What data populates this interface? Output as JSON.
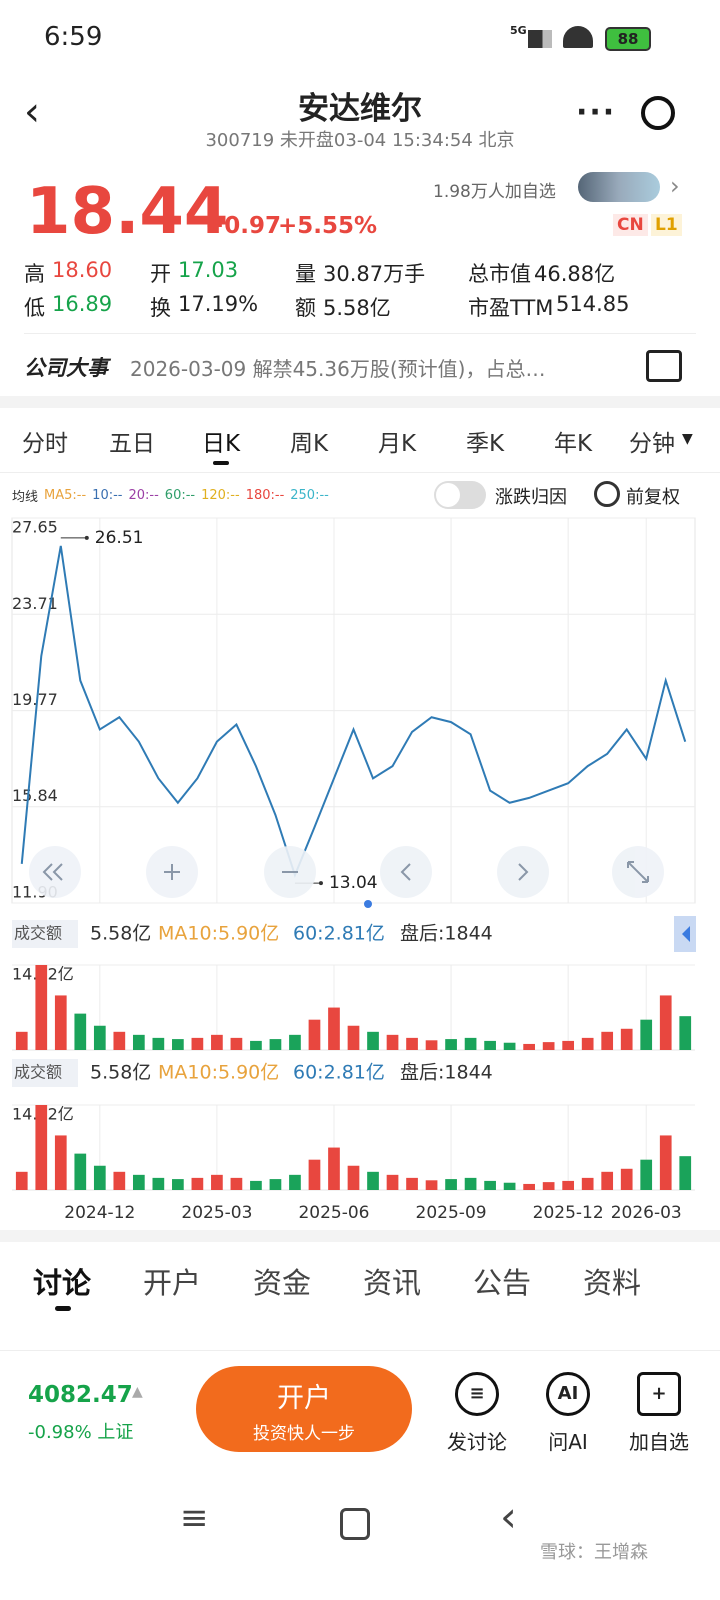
{
  "status_bar": {
    "time": "6:59",
    "network": "5G",
    "battery": "88"
  },
  "header": {
    "title": "安达维尔",
    "subtitle": "300719 未开盘03-04 15:34:54 北京"
  },
  "quote": {
    "price": "18.44",
    "change": "+0.97",
    "change_pct": "+5.55%",
    "followers": "1.98万人加自选",
    "badges": [
      "CN",
      "L1"
    ],
    "stats": [
      [
        {
          "label": "高",
          "value": "18.60"
        },
        {
          "label": "开",
          "value": "17.03"
        },
        {
          "label": "量",
          "value": "30.87万手"
        },
        {
          "label": "总市值",
          "value": "46.88亿"
        }
      ],
      [
        {
          "label": "低",
          "value": "16.89"
        },
        {
          "label": "换",
          "value": "17.19%"
        },
        {
          "label": "额",
          "value": "5.58亿"
        },
        {
          "label": "市盈TTM",
          "value": "514.85"
        }
      ]
    ]
  },
  "event": {
    "label": "公司大事",
    "text": "2026-03-09 解禁45.36万股(预计值)，占总…"
  },
  "period_tabs": [
    "分时",
    "五日",
    "日K",
    "周K",
    "月K",
    "季K",
    "年K",
    "分钟"
  ],
  "ma_legend": {
    "label": "均线",
    "items": [
      {
        "text": "MA5:--",
        "color": "#e8a33d"
      },
      {
        "text": "10:--",
        "color": "#3a6fb0"
      },
      {
        "text": "20:--",
        "color": "#9b3fa6"
      },
      {
        "text": "60:--",
        "color": "#2f9e6a"
      },
      {
        "text": "120:--",
        "color": "#e0b020"
      },
      {
        "text": "180:--",
        "color": "#e8473f"
      },
      {
        "text": "250:--",
        "color": "#3bb5c9"
      }
    ]
  },
  "toggle_label": "涨跌归因",
  "adjust_label": "前复权",
  "volume_header": {
    "label": "成交额",
    "value": "5.58亿",
    "ma10": "MA10:5.90亿",
    "ma60": "60:2.81亿",
    "after_hours": "盘后:1844"
  },
  "chart_data": [
    {
      "type": "line",
      "categories": [
        null,
        null,
        null,
        null,
        "2024-12",
        null,
        null,
        null,
        null,
        null,
        "2025-03",
        null,
        null,
        null,
        null,
        null,
        "2025-06",
        null,
        null,
        null,
        null,
        null,
        "2025-09",
        null,
        null,
        null,
        null,
        null,
        "2025-12",
        null,
        null,
        null,
        "2026-03",
        null,
        null
      ],
      "series": [
        {
          "color": "#2f7bb5",
          "values": [
            13.5,
            22,
            26.51,
            21,
            19,
            19.5,
            18.5,
            17,
            16,
            17,
            18.5,
            19.2,
            17.5,
            15.5,
            13.04,
            15,
            17,
            19,
            17,
            17.5,
            18.9,
            19.5,
            19.3,
            18.8,
            16.5,
            16,
            16.2,
            16.5,
            16.8,
            17.5,
            18,
            19,
            17.8,
            21,
            18.5
          ]
        }
      ],
      "ylim": [
        11.9,
        27.65
      ],
      "yticks": [
        27.65,
        23.71,
        19.77,
        15.84,
        {
          "value": 11.9,
          "label": "11.90"
        }
      ],
      "grid": true
    },
    {
      "type": "bar",
      "up_color": "#e8473f",
      "down_color": "#1aa35a",
      "values": [
        3,
        14.02,
        9,
        6,
        4,
        3,
        2.5,
        2,
        1.8,
        2,
        2.5,
        2,
        1.5,
        1.8,
        2.5,
        5,
        7,
        4,
        3,
        2.5,
        2,
        1.6,
        1.8,
        2,
        1.5,
        1.2,
        1,
        1.3,
        1.5,
        2,
        3,
        3.5,
        5,
        9,
        5.58
      ],
      "ylim": [
        0,
        14.02
      ],
      "yticks": [
        {
          "value": 14.02,
          "label": "14.02亿"
        }
      ]
    },
    {
      "type": "bar",
      "up_color": "#e8473f",
      "down_color": "#1aa35a",
      "values": [
        3,
        14.02,
        9,
        6,
        4,
        3,
        2.5,
        2,
        1.8,
        2,
        2.5,
        2,
        1.5,
        1.8,
        2.5,
        5,
        7,
        4,
        3,
        2.5,
        2,
        1.6,
        1.8,
        2,
        1.5,
        1.2,
        1,
        1.3,
        1.5,
        2,
        3,
        3.5,
        5,
        9,
        5.58
      ],
      "ylim": [
        0,
        14.02
      ],
      "yticks": [
        {
          "value": 14.02,
          "label": "14.02亿"
        }
      ]
    }
  ],
  "content_tabs": [
    "讨论",
    "开户",
    "资金",
    "资讯",
    "公告",
    "资料"
  ],
  "footer": {
    "index_value": "4082.47",
    "index_change": "-0.98% 上证",
    "cta_title": "开户",
    "cta_subtitle": "投资快人一步",
    "actions": [
      {
        "icon": "≡",
        "label": "发讨论"
      },
      {
        "icon": "AI",
        "label": "问AI"
      },
      {
        "icon": "+",
        "label": "加自选"
      }
    ]
  },
  "watermark": "雪球：王增森"
}
